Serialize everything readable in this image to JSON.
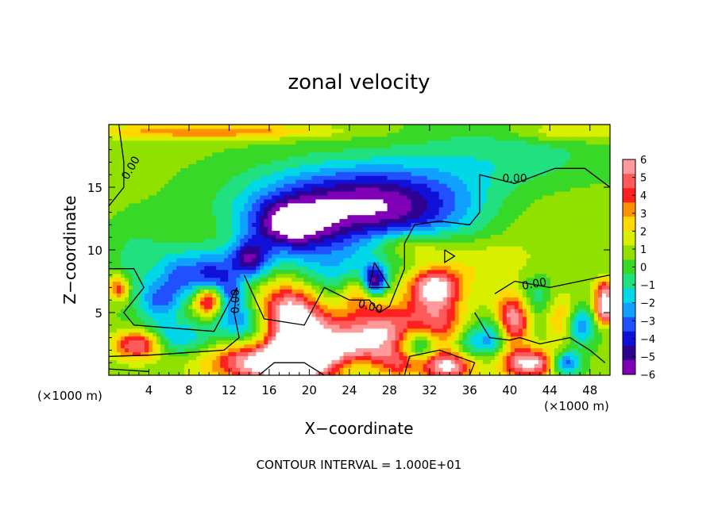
{
  "chart_data": {
    "type": "heatmap",
    "title": "zonal velocity",
    "xlabel": "X−coordinate",
    "ylabel": "Z−coordinate",
    "x_unit_left": "(×1000 m)",
    "x_unit_right": "(×1000 m)",
    "xlim": [
      0,
      50
    ],
    "ylim": [
      0,
      20
    ],
    "x_ticks": [
      4,
      8,
      12,
      16,
      20,
      24,
      28,
      32,
      36,
      40,
      44,
      48
    ],
    "y_ticks": [
      5,
      10,
      15
    ],
    "colorbar": {
      "min": -6,
      "max": 6,
      "tick_labels": [
        "6",
        "5",
        "4",
        "3",
        "2",
        "1",
        "0",
        "−1",
        "−2",
        "−3",
        "−4",
        "−5",
        "−6"
      ],
      "colors": [
        "#ff9a9a",
        "#ff5a5a",
        "#ff2020",
        "#ff9000",
        "#ffd800",
        "#d8f000",
        "#90e000",
        "#38d828",
        "#20e080",
        "#00d8e8",
        "#10a0ff",
        "#2050ff",
        "#1010d8",
        "#300090",
        "#8000b8"
      ]
    },
    "contour_labels": [
      "0.00",
      "0.00",
      "0.00",
      "0.00",
      "0.00"
    ],
    "footer": "CONTOUR INTERVAL = 1.000E+01",
    "features": [
      {
        "x": 25,
        "z": 14,
        "value": -5,
        "sx": 11,
        "sz": 3
      },
      {
        "x": 18,
        "z": 12,
        "value": -5,
        "sx": 4,
        "sz": 2
      },
      {
        "x": 14,
        "z": 9.3,
        "value": -5,
        "sx": 2,
        "sz": 1.5
      },
      {
        "x": 10,
        "z": 8,
        "value": -4,
        "sx": 2,
        "sz": 2
      },
      {
        "x": 7,
        "z": 8,
        "value": -3,
        "sx": 2,
        "sz": 2
      },
      {
        "x": 5,
        "z": 6,
        "value": -3,
        "sx": 2,
        "sz": 1.5
      },
      {
        "x": 21,
        "z": 8,
        "value": -2.5,
        "sx": 6,
        "sz": 3
      },
      {
        "x": 29,
        "z": 12.5,
        "value": -2.5,
        "sx": 10,
        "sz": 3
      },
      {
        "x": 40,
        "z": 17.5,
        "value": -1.5,
        "sx": 10,
        "sz": 3
      },
      {
        "x": 3,
        "z": 9,
        "value": -1.5,
        "sx": 3,
        "sz": 3
      },
      {
        "x": 40,
        "z": 13,
        "value": 1,
        "sx": 10,
        "sz": 3
      },
      {
        "x": 10,
        "z": 19.5,
        "value": 3,
        "sx": 12,
        "sz": 0.6
      },
      {
        "x": 46,
        "z": 19.5,
        "value": 2,
        "sx": 6,
        "sz": 0.8
      },
      {
        "x": 30,
        "z": 10.5,
        "value": 2.5,
        "sx": 4,
        "sz": 1.2
      },
      {
        "x": 37,
        "z": 9,
        "value": 1.5,
        "sx": 6,
        "sz": 2
      },
      {
        "x": 3,
        "z": 2.5,
        "value": 6,
        "sx": 2.5,
        "sz": 1.2
      },
      {
        "x": 10,
        "z": 6,
        "value": 6,
        "sx": 1.5,
        "sz": 1.2
      },
      {
        "x": 18,
        "z": 5,
        "value": 7,
        "sx": 3.5,
        "sz": 2.8
      },
      {
        "x": 18,
        "z": 1,
        "value": 8,
        "sx": 7,
        "sz": 1.5
      },
      {
        "x": 22,
        "z": 3,
        "value": 4,
        "sx": 6,
        "sz": 2
      },
      {
        "x": 28,
        "z": 3.5,
        "value": 4,
        "sx": 4,
        "sz": 2.5
      },
      {
        "x": 32.5,
        "z": 7,
        "value": 6,
        "sx": 2.5,
        "sz": 1.5
      },
      {
        "x": 33,
        "z": 4,
        "value": 4,
        "sx": 3,
        "sz": 2
      },
      {
        "x": 40.5,
        "z": 4.5,
        "value": 7,
        "sx": 2.5,
        "sz": 2
      },
      {
        "x": 45,
        "z": 4.5,
        "value": 3,
        "sx": 2,
        "sz": 2
      },
      {
        "x": 49.5,
        "z": 6.5,
        "value": 5,
        "sx": 1,
        "sz": 1.2
      },
      {
        "x": 49.5,
        "z": 5,
        "value": 5,
        "sx": 1,
        "sz": 1
      },
      {
        "x": 25,
        "z": 6.5,
        "value": 3,
        "sx": 2,
        "sz": 1.5
      },
      {
        "x": 29,
        "z": 1,
        "value": 2,
        "sx": 2,
        "sz": 1
      },
      {
        "x": 34,
        "z": 0.8,
        "value": 6,
        "sx": 3,
        "sz": 1.2
      },
      {
        "x": 42,
        "z": 1,
        "value": 6,
        "sx": 3,
        "sz": 1.2
      },
      {
        "x": 6,
        "z": 3,
        "value": -3,
        "sx": 4,
        "sz": 1.5
      },
      {
        "x": 14,
        "z": 4,
        "value": -4,
        "sx": 3,
        "sz": 2
      },
      {
        "x": 12,
        "z": 6.5,
        "value": -3,
        "sx": 1.5,
        "sz": 2
      },
      {
        "x": 26.5,
        "z": 7.5,
        "value": -6,
        "sx": 1.2,
        "sz": 1.2
      },
      {
        "x": 31,
        "z": 2.5,
        "value": -5,
        "sx": 2,
        "sz": 1.5
      },
      {
        "x": 36,
        "z": 2.5,
        "value": -3,
        "sx": 2,
        "sz": 2
      },
      {
        "x": 38.5,
        "z": 3.5,
        "value": -4,
        "sx": 1.5,
        "sz": 2
      },
      {
        "x": 42.5,
        "z": 5,
        "value": -4,
        "sx": 2,
        "sz": 2.5
      },
      {
        "x": 47,
        "z": 4,
        "value": -4,
        "sx": 1.5,
        "sz": 1.5
      },
      {
        "x": 45.5,
        "z": 1,
        "value": -5,
        "sx": 1.5,
        "sz": 1
      },
      {
        "x": 24,
        "z": 0.8,
        "value": -3,
        "sx": 3,
        "sz": 1
      },
      {
        "x": 1,
        "z": 7,
        "value": 4,
        "sx": 1,
        "sz": 1
      },
      {
        "x": 12.5,
        "z": 2.5,
        "value": 1,
        "sx": 2,
        "sz": 1.5
      }
    ],
    "contour_paths": [
      [
        [
          1.0,
          20
        ],
        [
          1.5,
          17.0
        ],
        [
          1.5,
          15.0
        ],
        [
          0,
          13.5
        ]
      ],
      [
        [
          0,
          8.5
        ],
        [
          2.5,
          8.5
        ],
        [
          3.5,
          7.0
        ],
        [
          1.5,
          5.0
        ],
        [
          2.5,
          4.0
        ],
        [
          10.5,
          3.5
        ],
        [
          11.5,
          5.0
        ],
        [
          12.8,
          7.0
        ],
        [
          12.5,
          5.0
        ],
        [
          13.0,
          3.0
        ],
        [
          11.5,
          2.0
        ],
        [
          4.0,
          1.6
        ],
        [
          0,
          1.5
        ]
      ],
      [
        [
          13.5,
          8.0
        ],
        [
          15.5,
          4.5
        ],
        [
          19.5,
          4.0
        ],
        [
          21.5,
          7.0
        ],
        [
          24.0,
          6.0
        ],
        [
          26.0,
          6.0
        ],
        [
          27.0,
          5.0
        ],
        [
          28.0,
          5.5
        ],
        [
          29.5,
          8.5
        ],
        [
          29.5,
          10.5
        ],
        [
          30.5,
          12.0
        ],
        [
          33.0,
          12.3
        ],
        [
          36.0,
          12.0
        ],
        [
          37.0,
          13.0
        ],
        [
          37.0,
          16.0
        ],
        [
          40.5,
          15.3
        ],
        [
          44.5,
          16.5
        ],
        [
          47.5,
          16.5
        ],
        [
          50.0,
          15.0
        ]
      ],
      [
        [
          26.5,
          9.0
        ],
        [
          28.0,
          7.0
        ],
        [
          26.0,
          7.0
        ],
        [
          26.5,
          9.0
        ]
      ],
      [
        [
          33.5,
          10.0
        ],
        [
          34.5,
          9.5
        ],
        [
          33.5,
          9.0
        ],
        [
          33.5,
          10.0
        ]
      ],
      [
        [
          38.5,
          6.5
        ],
        [
          40.5,
          7.5
        ],
        [
          44.0,
          7.0
        ],
        [
          47.0,
          7.5
        ],
        [
          50.0,
          8.0
        ]
      ],
      [
        [
          36.5,
          5.0
        ],
        [
          38.0,
          3.0
        ],
        [
          40.0,
          2.8
        ],
        [
          41.0,
          3.0
        ],
        [
          43.0,
          2.5
        ],
        [
          46.0,
          3.0
        ],
        [
          48.0,
          2.0
        ],
        [
          49.5,
          1.0
        ]
      ],
      [
        [
          29.5,
          0
        ],
        [
          30.0,
          1.5
        ],
        [
          33.0,
          2.0
        ],
        [
          36.5,
          1.0
        ],
        [
          36.0,
          0
        ]
      ],
      [
        [
          0,
          0.5
        ],
        [
          4.0,
          0.3
        ]
      ],
      [
        [
          15.0,
          0
        ],
        [
          16.5,
          1.0
        ],
        [
          19.5,
          1.0
        ],
        [
          21.5,
          0
        ]
      ]
    ]
  }
}
